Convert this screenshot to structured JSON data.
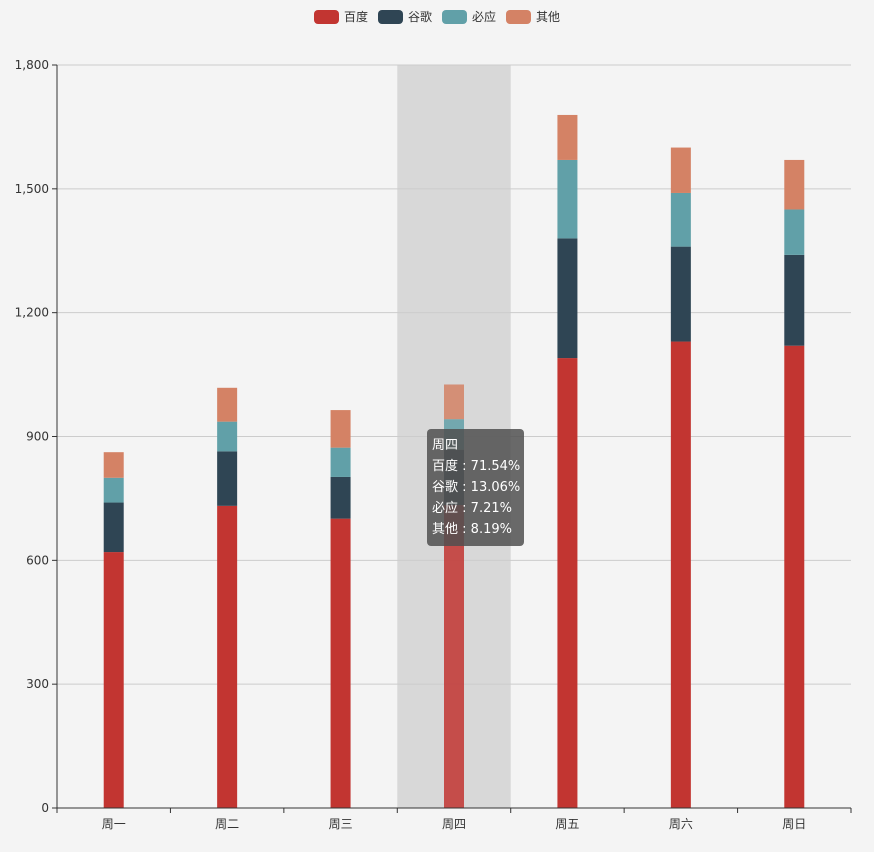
{
  "chart_data": {
    "type": "bar",
    "stacked": true,
    "categories": [
      "周一",
      "周二",
      "周三",
      "周四",
      "周五",
      "周六",
      "周日"
    ],
    "series": [
      {
        "name": "百度",
        "color": "#c23531",
        "values": [
          620,
          732,
          701,
          734,
          1090,
          1130,
          1120
        ]
      },
      {
        "name": "谷歌",
        "color": "#2f4554",
        "values": [
          120,
          132,
          101,
          134,
          290,
          230,
          220
        ]
      },
      {
        "name": "必应",
        "color": "#61a0a8",
        "values": [
          60,
          72,
          71,
          74,
          190,
          130,
          110
        ]
      },
      {
        "name": "其他",
        "color": "#d48265",
        "values": [
          62,
          82,
          91,
          84,
          109,
          110,
          120
        ]
      }
    ],
    "ylim": [
      0,
      1800
    ],
    "yticks": [
      "0",
      "300",
      "600",
      "900",
      "1,200",
      "1,500",
      "1,800"
    ],
    "grid": true,
    "legend_position": "top-center",
    "highlighted_category": "周四"
  },
  "tooltip": {
    "title": "周四",
    "rows": [
      {
        "name": "百度",
        "value": "71.54%"
      },
      {
        "name": "谷歌",
        "value": "13.06%"
      },
      {
        "name": "必应",
        "value": "7.21%"
      },
      {
        "name": "其他",
        "value": "8.19%"
      }
    ]
  }
}
